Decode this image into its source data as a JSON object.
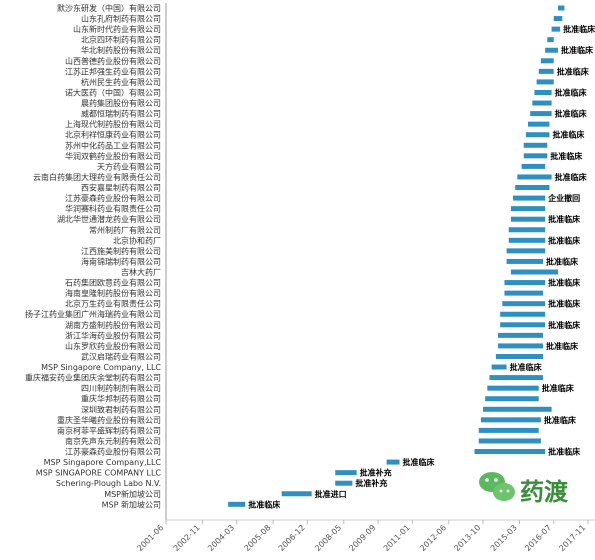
{
  "chart_data": {
    "type": "bar",
    "orientation": "horizontal-gantt",
    "color": "#2e8fc0",
    "x_ticks": [
      "2001-06",
      "2002-11",
      "2004-03",
      "2005-08",
      "2006-12",
      "2008-05",
      "2009-09",
      "2011-01",
      "2012-06",
      "2013-10",
      "2015-03",
      "2016-07",
      "2017-11"
    ],
    "xlim": [
      "2001-06",
      "2017-11"
    ],
    "grid": false,
    "legend": "none",
    "bars": [
      {
        "company": "默沙东研发（中国）有限公司",
        "start": "2016-09",
        "end": "2016-12",
        "note": ""
      },
      {
        "company": "山东孔府制药有限公司",
        "start": "2016-07",
        "end": "2016-11",
        "note": ""
      },
      {
        "company": "山东新时代药业有限公司",
        "start": "2016-06",
        "end": "2016-10",
        "note": "批准临床"
      },
      {
        "company": "北京四环制药有限公司",
        "start": "2016-04",
        "end": "2016-07",
        "note": ""
      },
      {
        "company": "华北制药股份有限公司",
        "start": "2016-03",
        "end": "2016-09",
        "note": "批准临床"
      },
      {
        "company": "山西普德药业股份有限公司",
        "start": "2016-01",
        "end": "2016-07",
        "note": ""
      },
      {
        "company": "江苏正邦强生药业有限公司",
        "start": "2015-12",
        "end": "2016-07",
        "note": "批准临床"
      },
      {
        "company": "杭州民生药业有限公司",
        "start": "2015-11",
        "end": "2016-07",
        "note": ""
      },
      {
        "company": "诺大医药（中国）有限公司",
        "start": "2015-10",
        "end": "2016-06",
        "note": "批准临床"
      },
      {
        "company": "晨药集团股份有限公司",
        "start": "2015-09",
        "end": "2016-06",
        "note": ""
      },
      {
        "company": "威都恒瑞制药有限公司",
        "start": "2015-08",
        "end": "2016-06",
        "note": "批准临床"
      },
      {
        "company": "上海现代制药股份有限公司",
        "start": "2015-07",
        "end": "2016-05",
        "note": ""
      },
      {
        "company": "北京利祥恒康药业有限公司",
        "start": "2015-06",
        "end": "2016-05",
        "note": "批准临床"
      },
      {
        "company": "苏州中化药品工业有限公司",
        "start": "2015-05",
        "end": "2016-04",
        "note": ""
      },
      {
        "company": "华润双鹤药业股份有限公司",
        "start": "2015-05",
        "end": "2016-04",
        "note": "批准临床"
      },
      {
        "company": "天方药业有限公司",
        "start": "2015-04",
        "end": "2016-03",
        "note": ""
      },
      {
        "company": "云南白药集团大理药业有限责任公司",
        "start": "2015-02",
        "end": "2016-06",
        "note": "批准临床"
      },
      {
        "company": "西安嘉星制药有限公司",
        "start": "2015-01",
        "end": "2016-05",
        "note": ""
      },
      {
        "company": "江苏豪森药业股份有限公司",
        "start": "2014-12",
        "end": "2016-03",
        "note": "企业撤回"
      },
      {
        "company": "华润赛科药业有限责任公司",
        "start": "2014-11",
        "end": "2016-03",
        "note": ""
      },
      {
        "company": "湖北华世通潜龙药业有限公司",
        "start": "2014-11",
        "end": "2016-03",
        "note": "批准临床"
      },
      {
        "company": "常州制药厂有限公司",
        "start": "2014-10",
        "end": "2016-03",
        "note": ""
      },
      {
        "company": "北京协和药厂",
        "start": "2014-10",
        "end": "2016-03",
        "note": "批准临床"
      },
      {
        "company": "江西施美制药有限公司",
        "start": "2014-09",
        "end": "2016-03",
        "note": ""
      },
      {
        "company": "海南锦瑞制药有限公司",
        "start": "2014-09",
        "end": "2016-02",
        "note": "批准临床"
      },
      {
        "company": "吉林大药厂",
        "start": "2014-11",
        "end": "2016-09",
        "note": ""
      },
      {
        "company": "石药集团欧意药业有限公司",
        "start": "2014-08",
        "end": "2016-03",
        "note": "批准临床"
      },
      {
        "company": "海南皇隆制药股份有限公司",
        "start": "2014-08",
        "end": "2016-02",
        "note": ""
      },
      {
        "company": "北京万生药业有限责任公司",
        "start": "2014-07",
        "end": "2016-03",
        "note": "批准临床"
      },
      {
        "company": "扬子江药业集团广州海瑞药业有限公司",
        "start": "2014-06",
        "end": "2016-03",
        "note": ""
      },
      {
        "company": "湖南方盛制药股份有限公司",
        "start": "2014-06",
        "end": "2016-03",
        "note": "批准临床"
      },
      {
        "company": "浙江华海药业股份有限公司",
        "start": "2014-05",
        "end": "2016-02",
        "note": ""
      },
      {
        "company": "山东罗欣药业股份有限公司",
        "start": "2014-05",
        "end": "2016-02",
        "note": "批准临床"
      },
      {
        "company": "武汉启瑞药业有限公司",
        "start": "2014-04",
        "end": "2016-02",
        "note": ""
      },
      {
        "company": "MSP Singapore Company, LLC",
        "start": "2014-02",
        "end": "2014-09",
        "note": "批准临床"
      },
      {
        "company": "重庆福安药业集团庆余堂制药有限公司",
        "start": "2014-01",
        "end": "2016-02",
        "note": ""
      },
      {
        "company": "四川制药制剂有限公司",
        "start": "2013-12",
        "end": "2015-12",
        "note": "批准临床"
      },
      {
        "company": "重庆华邦制药有限公司",
        "start": "2013-11",
        "end": "2015-12",
        "note": ""
      },
      {
        "company": "深圳致君制药有限公司",
        "start": "2013-10",
        "end": "2016-06",
        "note": ""
      },
      {
        "company": "重庆圣华曦药业股份有限公司",
        "start": "2013-09",
        "end": "2016-01",
        "note": "批准临床"
      },
      {
        "company": "南京柯菲平盛辉制药有限公司",
        "start": "2013-08",
        "end": "2015-12",
        "note": ""
      },
      {
        "company": "南京先声东元制药有限公司",
        "start": "2013-08",
        "end": "2016-01",
        "note": ""
      },
      {
        "company": "江苏豪森药业股份有限公司",
        "start": "2013-06",
        "end": "2016-03",
        "note": "批准临床"
      },
      {
        "company": "MSP Singapore Company,LLC",
        "start": "2010-01",
        "end": "2010-07",
        "note": "批准临床"
      },
      {
        "company": "MSP SINGAPORE COMPANY LLC",
        "start": "2008-01",
        "end": "2008-11",
        "note": "批准补充"
      },
      {
        "company": "Schering-Plough Labo N.V.",
        "start": "2008-01",
        "end": "2008-09",
        "note": "批准补充"
      },
      {
        "company": "MSP新加坡公司",
        "start": "2005-12",
        "end": "2007-02",
        "note": "批准进口"
      },
      {
        "company": "MSP 新加坡公司",
        "start": "2003-11",
        "end": "2004-07",
        "note": "批准临床"
      }
    ]
  },
  "watermark": {
    "text": "药渡",
    "icon": "wechat-icon"
  }
}
